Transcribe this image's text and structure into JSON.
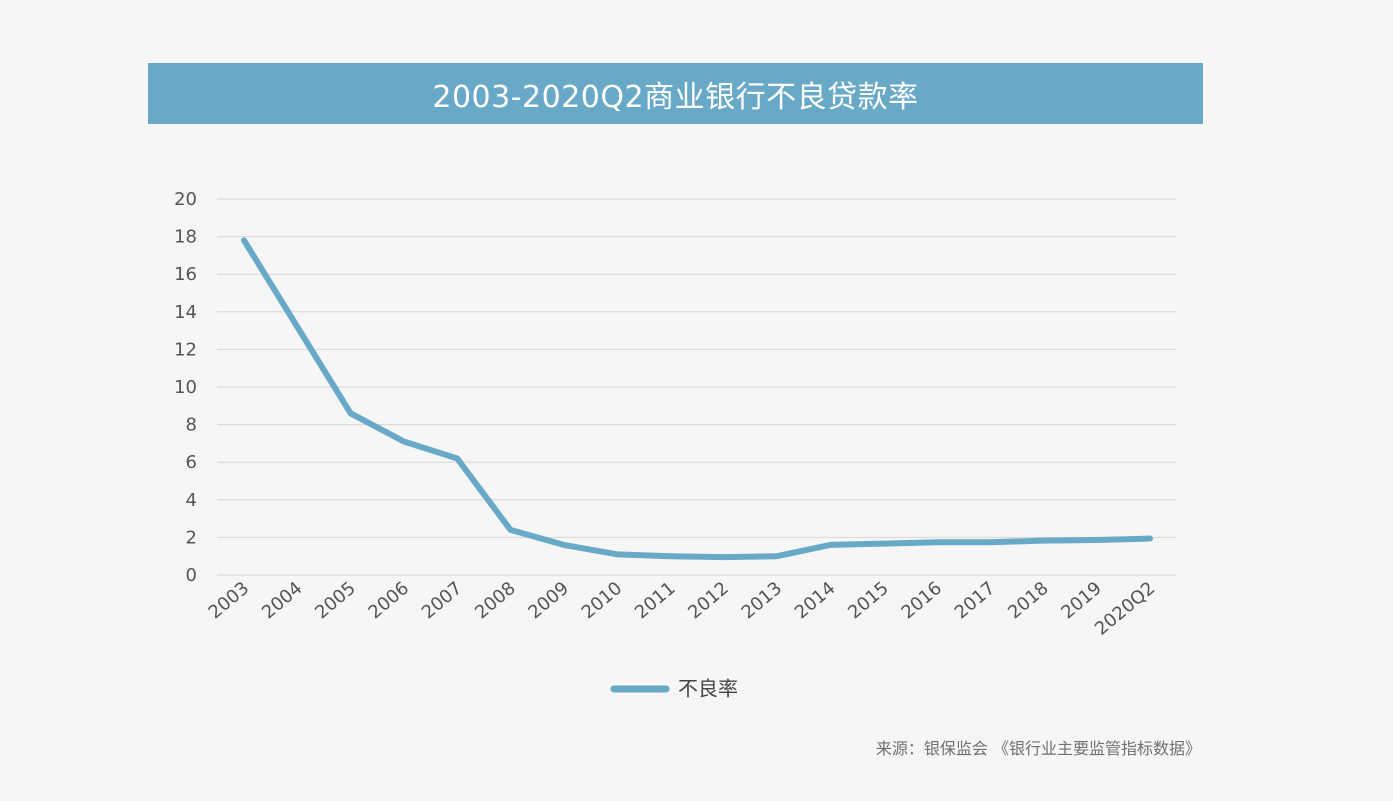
{
  "title": "2003-2020Q2商业银行不良贷款率",
  "source": "来源：银保监会 《银行业主要监管指标数据》",
  "colors": {
    "series": "#68a9c7",
    "grid": "#d6d6d6",
    "tick_text": "#555555"
  },
  "chart_data": {
    "type": "line",
    "title": "2003-2020Q2商业银行不良贷款率",
    "xlabel": "",
    "ylabel": "",
    "categories": [
      "2003",
      "2004",
      "2005",
      "2006",
      "2007",
      "2008",
      "2009",
      "2010",
      "2011",
      "2012",
      "2013",
      "2014",
      "2015",
      "2016",
      "2017",
      "2018",
      "2019",
      "2020Q2"
    ],
    "series": [
      {
        "name": "不良率",
        "values": [
          17.8,
          13.2,
          8.6,
          7.1,
          6.2,
          2.4,
          1.6,
          1.1,
          1.0,
          0.95,
          1.0,
          1.6,
          1.67,
          1.74,
          1.74,
          1.83,
          1.86,
          1.94
        ]
      }
    ],
    "ylim": [
      0,
      20
    ],
    "yticks": [
      0,
      2,
      4,
      6,
      8,
      10,
      12,
      14,
      16,
      18,
      20
    ],
    "grid": true,
    "legend": "bottom-center"
  }
}
